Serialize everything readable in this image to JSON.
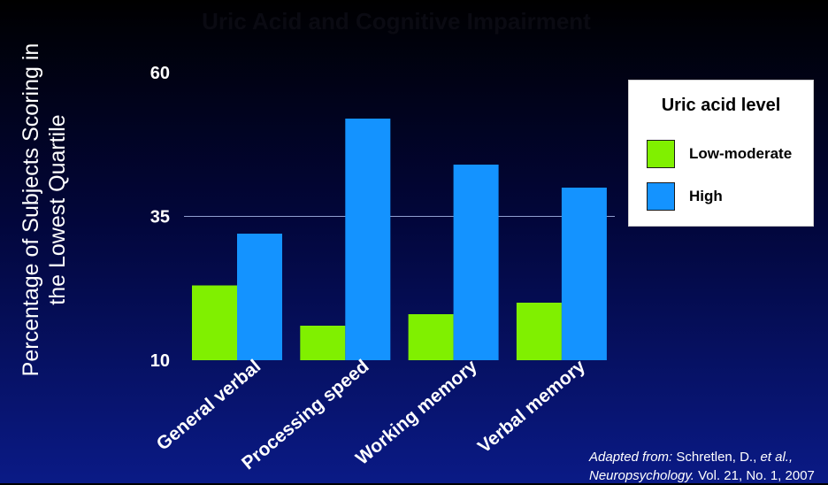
{
  "chart_data": {
    "type": "bar",
    "title": "Uric Acid and Cognitive Impairment",
    "ylabel": "Percentage of Subjects Scoring in the Lowest Quartile",
    "ylabel_lines": [
      "Percentage of Subjects Scoring in",
      "the Lowest Quartile"
    ],
    "xlabel": "",
    "categories": [
      "General verbal",
      "Processing speed",
      "Working memory",
      "Verbal memory"
    ],
    "series": [
      {
        "name": "Low-moderate",
        "color": "#80f000",
        "values": [
          23,
          16,
          18,
          20
        ]
      },
      {
        "name": "High",
        "color": "#1493ff",
        "values": [
          32,
          52,
          44,
          40
        ]
      }
    ],
    "ylim": [
      10,
      60
    ],
    "yticks": [
      10,
      35,
      60
    ],
    "ytick_labels": [
      "10",
      "35",
      "60"
    ],
    "gridlines_at": [
      35
    ],
    "legend": {
      "title": "Uric acid level",
      "placement": "right"
    }
  },
  "source": {
    "prefix_italic": "Adapted from:",
    "authors": "Schretlen, D.,",
    "etal_italic": "et al.,",
    "journal_italic": "Neuropsychology.",
    "details": "Vol. 21, No. 1, 2007"
  }
}
